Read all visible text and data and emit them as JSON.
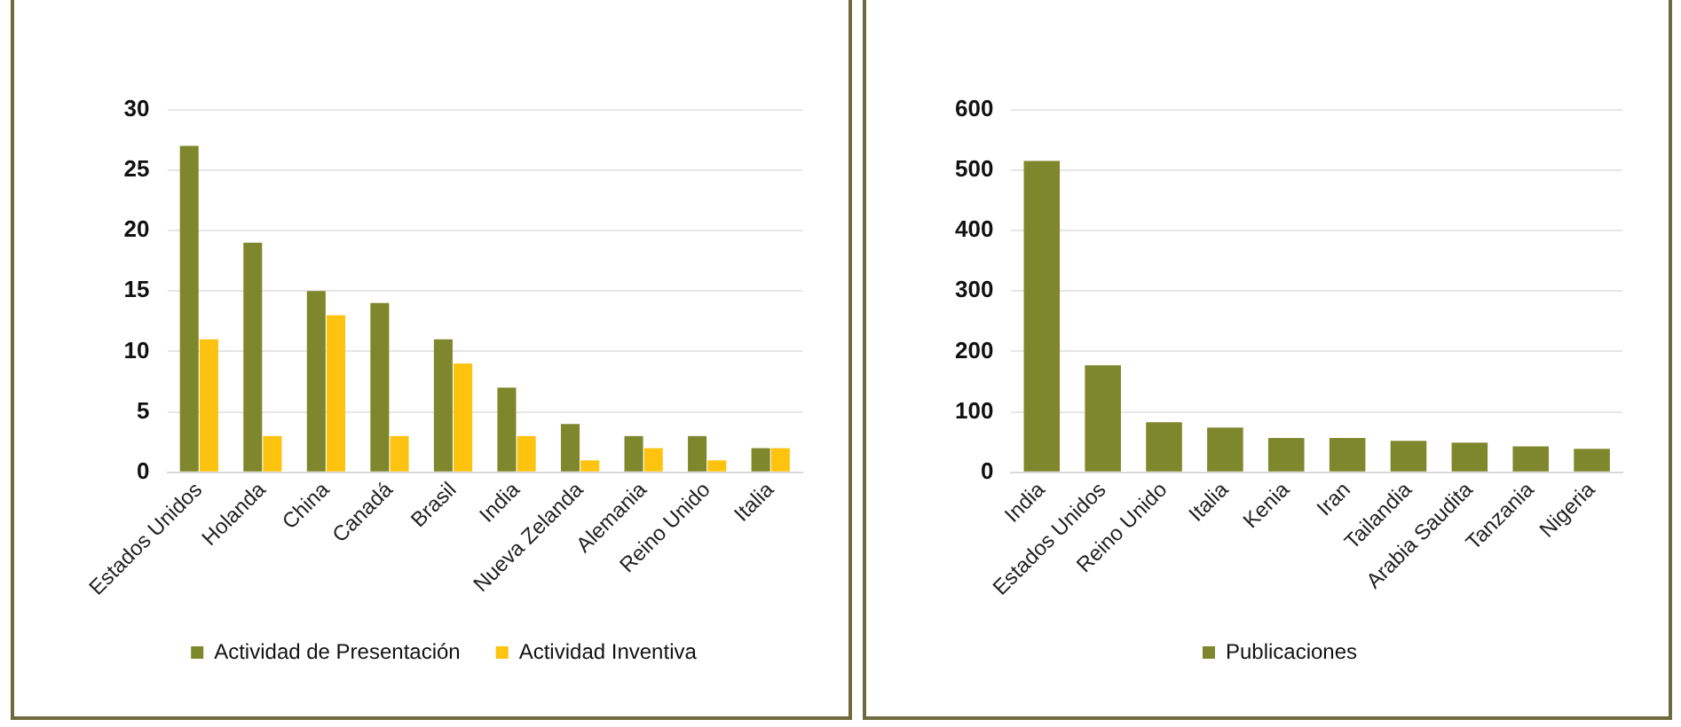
{
  "chart_data": [
    {
      "type": "bar",
      "categories": [
        "Estados Unidos",
        "Holanda",
        "China",
        "Canadá",
        "Brasil",
        "India",
        "Nueva Zelanda",
        "Alemania",
        "Reino Unido",
        "Italia"
      ],
      "series": [
        {
          "name": "Actividad de Presentación",
          "color": "#7f872c",
          "values": [
            27,
            19,
            15,
            14,
            11,
            7,
            4,
            3,
            3,
            2
          ]
        },
        {
          "name": "Actividad Inventiva",
          "color": "#fdc30f",
          "values": [
            11,
            3,
            13,
            3,
            9,
            3,
            1,
            2,
            1,
            2
          ]
        }
      ],
      "ylim": [
        0,
        30
      ],
      "yticks": [
        0,
        5,
        10,
        15,
        20,
        25,
        30
      ],
      "grid": "y",
      "legend": "bottom"
    },
    {
      "type": "bar",
      "categories": [
        "India",
        "Estados Unidos",
        "Reino Unido",
        "Italia",
        "Kenia",
        "Iran",
        "Tailandia",
        "Arabia Saudita",
        "Tanzania",
        "Nigeria"
      ],
      "series": [
        {
          "name": "Publicaciones",
          "color": "#7f872c",
          "values": [
            515,
            177,
            83,
            74,
            57,
            57,
            52,
            49,
            43,
            39
          ]
        }
      ],
      "ylim": [
        0,
        600
      ],
      "yticks": [
        0,
        100,
        200,
        300,
        400,
        500,
        600
      ],
      "grid": "y",
      "legend": "bottom"
    }
  ]
}
